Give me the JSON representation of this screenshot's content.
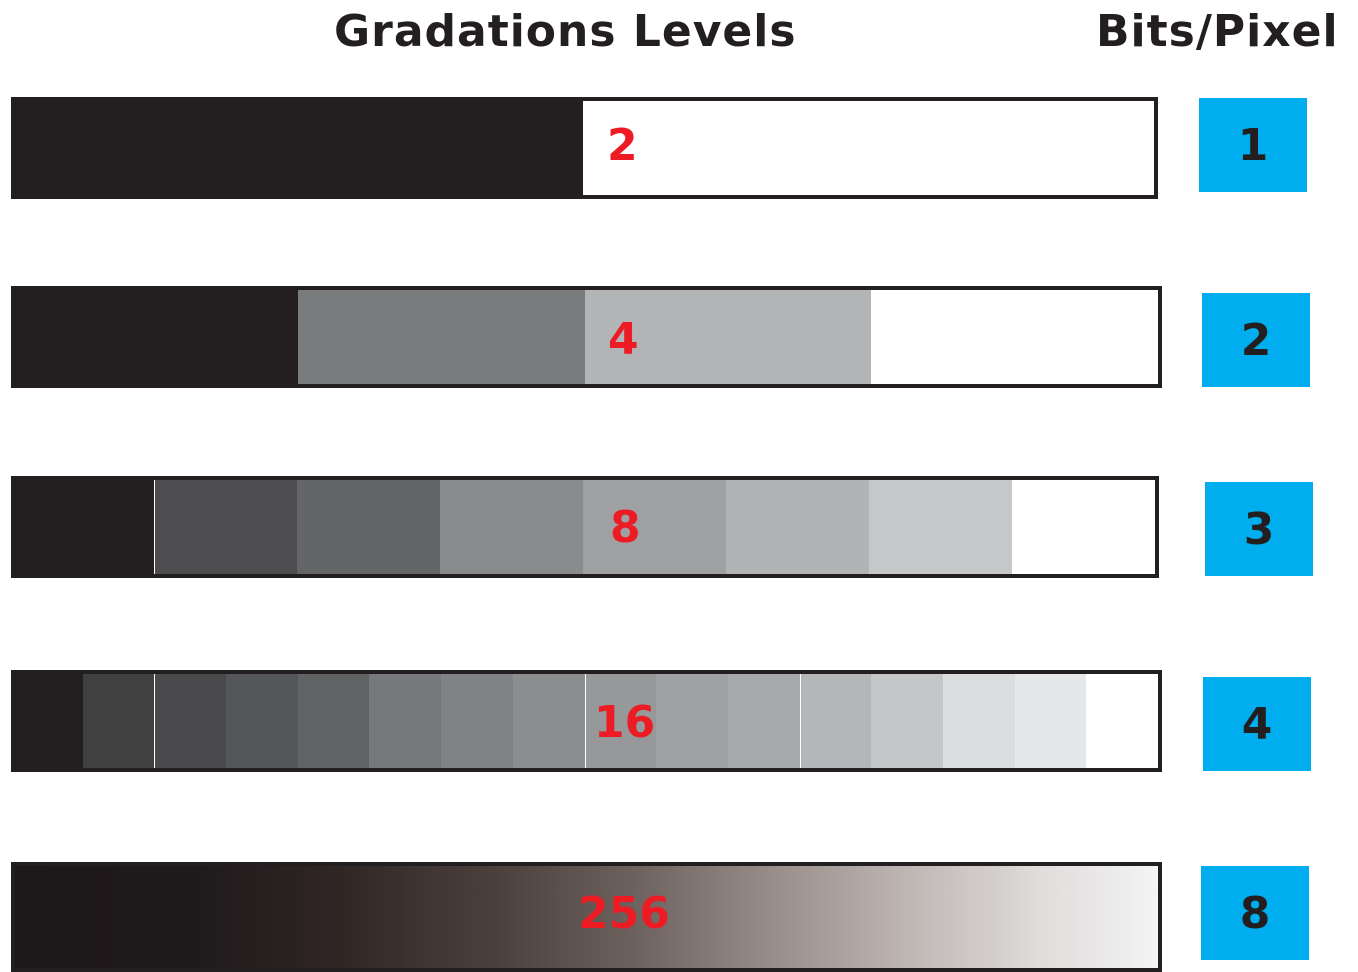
{
  "headings": {
    "gradations": "Gradations Levels",
    "bits": "Bits/Pixel"
  },
  "rows": [
    {
      "levels_label": "2",
      "bits": "1",
      "shades": [
        "#231f20",
        "#ffffff"
      ]
    },
    {
      "levels_label": "4",
      "bits": "2",
      "shades": [
        "#231f20",
        "#7a7b7d",
        "#b3b4b6",
        "#ffffff"
      ]
    },
    {
      "levels_label": "8",
      "bits": "3",
      "shades": [
        "#231f20",
        "#4d4d4f",
        "#646567",
        "#8a8b8d",
        "#9fa0a2",
        "#b2b3b5",
        "#c6c7c9",
        "#ffffff"
      ]
    },
    {
      "levels_label": "16",
      "bits": "4",
      "shades": [
        "#231f20",
        "#404041",
        "#4a4a4c",
        "#55565a",
        "#616264",
        "#77787b",
        "#818285",
        "#8c8d8f",
        "#97989a",
        "#a0a1a4",
        "#a7a9ac",
        "#b5b6b8",
        "#c5c6c8",
        "#dcdddf",
        "#e6e7e8",
        "#ffffff"
      ]
    },
    {
      "levels_label": "256",
      "bits": "8",
      "gradient": [
        "#1c1719",
        "#f4f4f4"
      ]
    }
  ],
  "colors": {
    "bits_box": "#00aeef",
    "level_label": "#ed1c24",
    "outline": "#231f20"
  }
}
